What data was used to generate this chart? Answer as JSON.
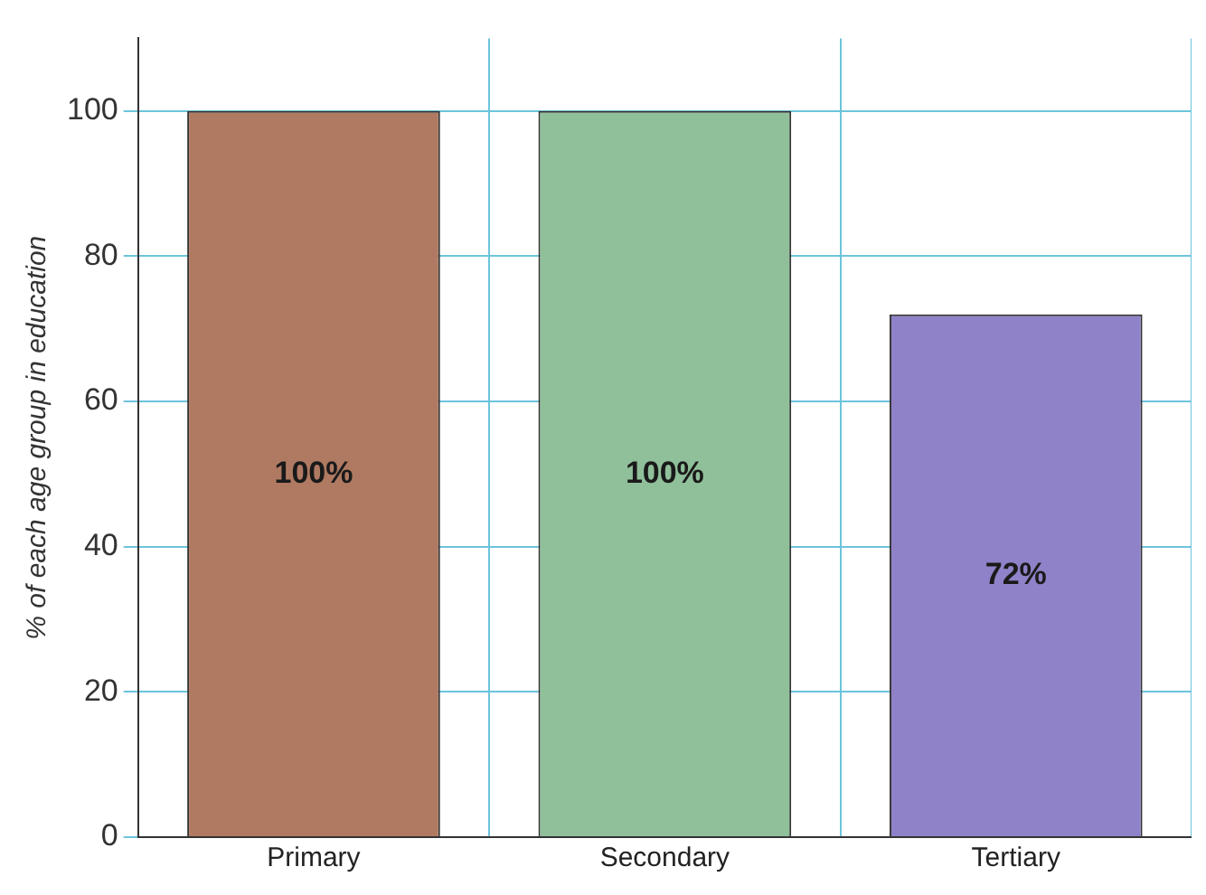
{
  "chart_data": {
    "type": "bar",
    "ylabel": "% of each age group in education",
    "categories": [
      "Primary",
      "Secondary",
      "Tertiary"
    ],
    "values": [
      100,
      100,
      72
    ],
    "colors": [
      "#b07a62",
      "#90c09a",
      "#9082c8"
    ],
    "value_labels": [
      "100%",
      "100%",
      "72%"
    ],
    "ylim": [
      0,
      110
    ],
    "yticks": [
      0,
      20,
      40,
      60,
      80,
      100
    ],
    "grid": true
  }
}
